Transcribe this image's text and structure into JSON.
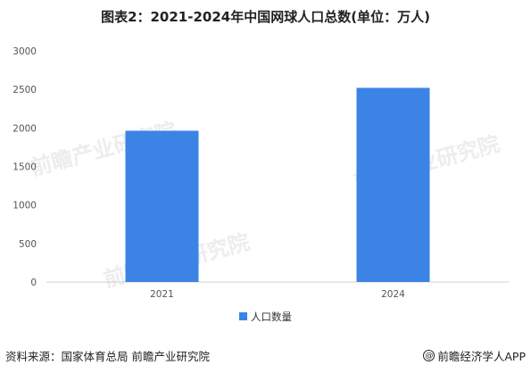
{
  "chart_data": {
    "type": "bar",
    "title": "图表2：2021-2024年中国网球人口总数(单位：万人)",
    "categories": [
      "2021",
      "2024"
    ],
    "series": [
      {
        "name": "人口数量",
        "values": [
          1963,
          2520
        ],
        "color": "#3B84E6"
      }
    ],
    "ylim": [
      0,
      3000
    ],
    "yticks": [
      "0",
      "500",
      "1000",
      "1500",
      "2000",
      "2500",
      "3000"
    ],
    "grid": false,
    "legend": "bottom",
    "xlabel": "",
    "ylabel": ""
  },
  "watermark": {
    "text": "前瞻产业研究院"
  },
  "footer": {
    "source": "资料来源：国家体育总局 前瞻产业研究院",
    "brand_icon": "at-circle-icon",
    "brand": "前瞻经济学人APP"
  }
}
